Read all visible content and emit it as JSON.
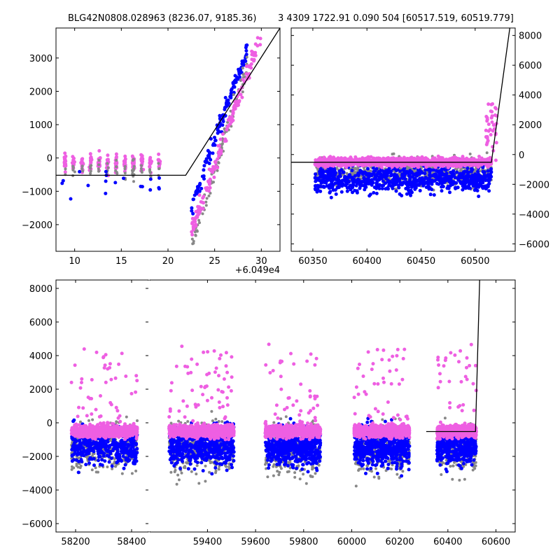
{
  "header": {
    "left_title": "BLG42N0808.028963 (8236.07, 9185.36)",
    "right_title": "3 4309 1722.91 0.090 504 [60517.519, 60519.779]"
  },
  "chart_data": [
    {
      "type": "scatter",
      "panel": "top-left zoom",
      "x_offset_label": "+6.049e4",
      "xlim": [
        8,
        32
      ],
      "ylim": [
        -2800,
        3900
      ],
      "xticks": [
        10,
        15,
        20,
        25,
        30
      ],
      "xtick_labels": [
        "10",
        "15",
        "20",
        "25",
        "30"
      ],
      "yticks": [
        -2000,
        -1000,
        0,
        1000,
        2000,
        3000
      ],
      "ytick_labels": [
        "−2000",
        "−1000",
        "0",
        "1000",
        "2000",
        "3000"
      ],
      "y_axis_side": "left",
      "grid": false,
      "series_colors": {
        "gray": "#888888",
        "blue": "#0000ff",
        "pink": "#ee5fe2"
      },
      "model_line": {
        "x": [
          8,
          21.9,
          32
        ],
        "y": [
          -520,
          -520,
          3900
        ],
        "color": "#000000"
      },
      "clusters": [
        {
          "color": "pink",
          "x": [
            8.5,
            19.5
          ],
          "y": [
            -1000,
            700
          ],
          "n": 220
        },
        {
          "color": "gray",
          "x": [
            8.5,
            19.5
          ],
          "y": [
            -1400,
            700
          ],
          "n": 60
        },
        {
          "color": "blue",
          "x": [
            8.2,
            19.5
          ],
          "y": [
            -2400,
            900
          ],
          "n": 18
        },
        {
          "color": "blue",
          "x": [
            22.5,
            28.5
          ],
          "y": [
            -1500,
            3300
          ],
          "n": 130,
          "trend": true
        },
        {
          "color": "gray",
          "x": [
            22.5,
            28.5
          ],
          "y": [
            -2600,
            2800
          ],
          "n": 110,
          "trend": true
        },
        {
          "color": "pink",
          "x": [
            22.5,
            30
          ],
          "y": [
            -2200,
            3700
          ],
          "n": 150,
          "trend": true
        }
      ]
    },
    {
      "type": "scatter",
      "panel": "top-right zoom",
      "xlim": [
        60330,
        60537
      ],
      "ylim": [
        -6500,
        8500
      ],
      "xticks": [
        60350,
        60400,
        60450,
        60500
      ],
      "xtick_labels": [
        "60350",
        "60400",
        "60450",
        "60500"
      ],
      "yticks": [
        -6000,
        -4000,
        -2000,
        0,
        2000,
        4000,
        6000,
        8000
      ],
      "ytick_labels": [
        "−6000",
        "−4000",
        "−2000",
        "0",
        "2000",
        "4000",
        "6000",
        "8000"
      ],
      "y_axis_side": "right",
      "grid": false,
      "model_line": {
        "x": [
          60330,
          60515,
          60532
        ],
        "y": [
          -520,
          -520,
          8500
        ],
        "color": "#000000"
      },
      "clusters": [
        {
          "color": "gray",
          "x": [
            60352,
            60515
          ],
          "y": [
            -6000,
            3000
          ],
          "n": 700
        },
        {
          "color": "blue",
          "x": [
            60352,
            60515
          ],
          "y": [
            -6400,
            2800
          ],
          "n": 800
        },
        {
          "color": "pink",
          "x": [
            60352,
            60515
          ],
          "y": [
            -1500,
            1500
          ],
          "n": 1500
        },
        {
          "color": "pink",
          "x": [
            60510,
            60520
          ],
          "y": [
            -500,
            3800
          ],
          "n": 40
        }
      ]
    },
    {
      "type": "scatter",
      "panel": "bottom full light curve (broken x-axis)",
      "ylim": [
        -6500,
        8500
      ],
      "yticks": [
        -6000,
        -4000,
        -2000,
        0,
        2000,
        4000,
        6000,
        8000
      ],
      "ytick_labels": [
        "−6000",
        "−4000",
        "−2000",
        "0",
        "2000",
        "4000",
        "6000",
        "8000"
      ],
      "y_axis_side": "left",
      "grid": false,
      "segments": [
        {
          "xlim": [
            58130,
            58460
          ],
          "xticks": [
            58200,
            58400
          ],
          "xtick_labels": [
            "58200",
            "58400"
          ]
        },
        {
          "xlim": [
            59160,
            60680
          ],
          "xticks": [
            59400,
            59600,
            59800,
            60000,
            60200,
            60400,
            60600
          ],
          "xtick_labels": [
            "59400",
            "59600",
            "59800",
            "60000",
            "60200",
            "60400",
            "60600"
          ]
        }
      ],
      "model_line": {
        "x": [
          60310,
          60515,
          60532
        ],
        "y": [
          -520,
          -520,
          8500
        ],
        "color": "#000000"
      },
      "seasons": [
        {
          "x": [
            58185,
            58420
          ],
          "n_gray": 350,
          "n_blue": 420,
          "n_pink": 900
        },
        {
          "x": [
            59240,
            59510
          ],
          "n_gray": 420,
          "n_blue": 520,
          "n_pink": 1000
        },
        {
          "x": [
            59640,
            59870
          ],
          "n_gray": 380,
          "n_blue": 560,
          "n_pink": 1000
        },
        {
          "x": [
            60010,
            60240
          ],
          "n_gray": 380,
          "n_blue": 560,
          "n_pink": 1000
        },
        {
          "x": [
            60355,
            60518
          ],
          "n_gray": 260,
          "n_blue": 380,
          "n_pink": 700
        }
      ]
    }
  ]
}
